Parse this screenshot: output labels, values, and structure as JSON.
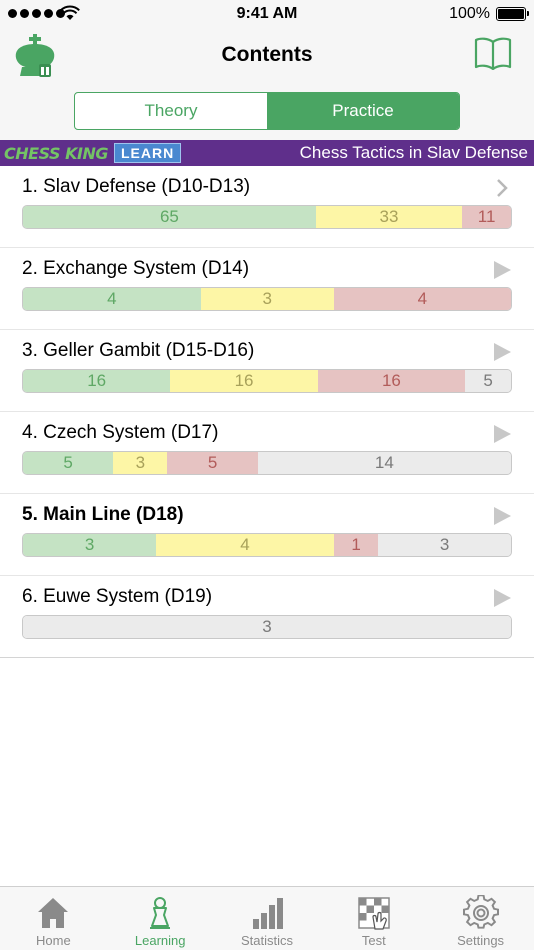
{
  "status_bar": {
    "time": "9:41 AM",
    "battery": "100%"
  },
  "nav": {
    "title": "Contents",
    "segments": [
      {
        "label": "Theory",
        "active": false
      },
      {
        "label": "Practice",
        "active": true
      }
    ]
  },
  "banner": {
    "brand": "CHESS KING",
    "badge": "LEARN",
    "title": "Chess Tactics in Slav Defense"
  },
  "chapters": [
    {
      "title": "1. Slav Defense (D10-D13)",
      "bold": false,
      "arrow": "chevron-right",
      "bar": [
        {
          "kind": "green",
          "value": "65",
          "frac": 0.6
        },
        {
          "kind": "yellow",
          "value": "33",
          "frac": 0.3
        },
        {
          "kind": "red",
          "value": "11",
          "frac": 0.1
        }
      ]
    },
    {
      "title": "2. Exchange System (D14)",
      "bold": false,
      "arrow": "play",
      "bar": [
        {
          "kind": "green",
          "value": "4",
          "frac": 0.364
        },
        {
          "kind": "yellow",
          "value": "3",
          "frac": 0.273
        },
        {
          "kind": "red",
          "value": "4",
          "frac": 0.363
        }
      ]
    },
    {
      "title": "3. Geller Gambit (D15-D16)",
      "bold": false,
      "arrow": "play",
      "bar": [
        {
          "kind": "green",
          "value": "16",
          "frac": 0.302
        },
        {
          "kind": "yellow",
          "value": "16",
          "frac": 0.302
        },
        {
          "kind": "red",
          "value": "16",
          "frac": 0.302
        },
        {
          "kind": "none",
          "value": "5",
          "frac": 0.094
        }
      ]
    },
    {
      "title": "4. Czech System (D17)",
      "bold": false,
      "arrow": "play",
      "bar": [
        {
          "kind": "green",
          "value": "5",
          "frac": 0.185
        },
        {
          "kind": "yellow",
          "value": "3",
          "frac": 0.111
        },
        {
          "kind": "red",
          "value": "5",
          "frac": 0.185
        },
        {
          "kind": "none",
          "value": "14",
          "frac": 0.519
        }
      ]
    },
    {
      "title": "5. Main Line (D18)",
      "bold": true,
      "arrow": "play",
      "bar": [
        {
          "kind": "green",
          "value": "3",
          "frac": 0.273
        },
        {
          "kind": "yellow",
          "value": "4",
          "frac": 0.364
        },
        {
          "kind": "red",
          "value": "1",
          "frac": 0.091
        },
        {
          "kind": "none",
          "value": "3",
          "frac": 0.272
        }
      ]
    },
    {
      "title": "6. Euwe System (D19)",
      "bold": false,
      "arrow": "play",
      "bar": [
        {
          "kind": "none",
          "value": "3",
          "frac": 1.0
        }
      ]
    }
  ],
  "tabbar": {
    "tabs": [
      {
        "label": "Home",
        "icon": "home-icon",
        "active": false
      },
      {
        "label": "Learning",
        "icon": "learning-icon",
        "active": true
      },
      {
        "label": "Statistics",
        "icon": "statistics-icon",
        "active": false
      },
      {
        "label": "Test",
        "icon": "test-icon",
        "active": false
      },
      {
        "label": "Settings",
        "icon": "gear-icon",
        "active": false
      }
    ]
  },
  "colors": {
    "accent_green": "#4aa563",
    "banner_purple": "#5f2f8b",
    "bar_green": "#c5e3c4",
    "bar_yellow": "#fdf6a6",
    "bar_red": "#e6c3c2",
    "bar_none": "#ebebeb"
  }
}
